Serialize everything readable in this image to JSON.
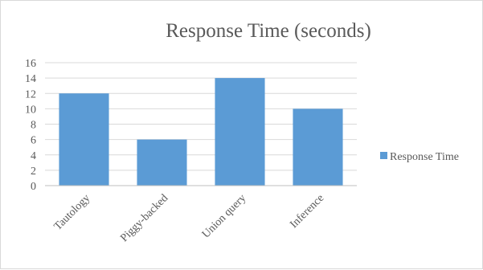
{
  "chart_data": {
    "type": "bar",
    "title": "Response Time (seconds)",
    "xlabel": "",
    "ylabel": "",
    "categories": [
      "Tautology",
      "Piggy-backed",
      "Union query",
      "Inference"
    ],
    "series": [
      {
        "name": "Response Time",
        "values": [
          12,
          6,
          14,
          10
        ],
        "color": "#5b9bd5"
      }
    ],
    "ylim": [
      0,
      16
    ],
    "yticks": [
      0,
      2,
      4,
      6,
      8,
      10,
      12,
      14,
      16
    ],
    "grid": true,
    "legend": "right"
  }
}
